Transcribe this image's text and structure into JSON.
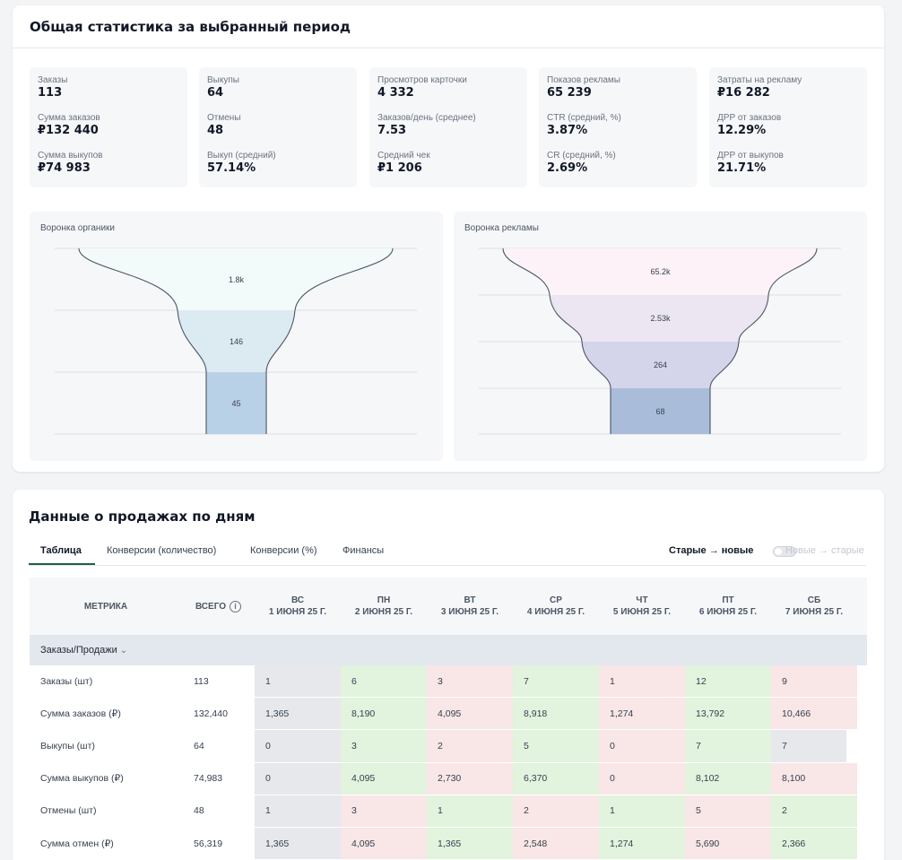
{
  "overview": {
    "title": "Общая статистика за выбранный период",
    "stat_boxes": [
      {
        "items": [
          {
            "label": "Заказы",
            "value": "113"
          },
          {
            "label": "Сумма заказов",
            "value": "₽132 440"
          },
          {
            "label": "Сумма выкупов",
            "value": "₽74 983"
          }
        ]
      },
      {
        "items": [
          {
            "label": "Выкупы",
            "value": "64"
          },
          {
            "label": "Отмены",
            "value": "48"
          },
          {
            "label": "Выкуп (средний)",
            "value": "57.14%"
          }
        ]
      },
      {
        "items": [
          {
            "label": "Просмотров карточки",
            "value": "4 332"
          },
          {
            "label": "Заказов/день (среднее)",
            "value": "7.53"
          },
          {
            "label": "Средний чек",
            "value": "₽1 206"
          }
        ]
      },
      {
        "items": [
          {
            "label": "Показов рекламы",
            "value": "65 239"
          },
          {
            "label": "CTR (средний, %)",
            "value": "3.87%"
          },
          {
            "label": "CR (средний, %)",
            "value": "2.69%"
          }
        ]
      },
      {
        "items": [
          {
            "label": "Затраты на рекламу",
            "value": "₽16 282"
          },
          {
            "label": "ДРР от заказов",
            "value": "12.29%"
          },
          {
            "label": "ДРР от выкупов",
            "value": "21.71%"
          }
        ]
      }
    ],
    "funnels": [
      {
        "title": "Воронка органики",
        "stages": [
          "1.8k",
          "146",
          "45"
        ],
        "colors": [
          "#f3fafa",
          "#dceaf1",
          "#b9d1e6"
        ]
      },
      {
        "title": "Воронка рекламы",
        "stages": [
          "65.2k",
          "2.53k",
          "264",
          "68"
        ],
        "colors": [
          "#fcf2f8",
          "#ece6f2",
          "#d4d4ea",
          "#a9bddb"
        ]
      }
    ]
  },
  "sales": {
    "title": "Данные о продажах по дням",
    "tabs": [
      "Таблица",
      "Конверсии (количество)",
      "Конверсии (%)",
      "Финансы"
    ],
    "sort_old_new": "Старые → новые",
    "sort_new_old": "Новые → старые",
    "header": {
      "metric": "МЕТРИКА",
      "total": "ВСЕГО",
      "info_icon": "i",
      "days": [
        {
          "dow": "ВС",
          "date": "1 ИЮНЯ 25 Г."
        },
        {
          "dow": "ПН",
          "date": "2 ИЮНЯ 25 Г."
        },
        {
          "dow": "ВТ",
          "date": "3 ИЮНЯ 25 Г."
        },
        {
          "dow": "СР",
          "date": "4 ИЮНЯ 25 Г."
        },
        {
          "dow": "ЧТ",
          "date": "5 ИЮНЯ 25 Г."
        },
        {
          "dow": "ПТ",
          "date": "6 ИЮНЯ 25 Г."
        },
        {
          "dow": "СБ",
          "date": "7 ИЮНЯ 25 Г."
        }
      ]
    },
    "group": "Заказы/Продажи",
    "rows": [
      {
        "metric": "Заказы (шт)",
        "total": "113",
        "cells": [
          {
            "v": "1",
            "c": "gray"
          },
          {
            "v": "6",
            "c": "green"
          },
          {
            "v": "3",
            "c": "red"
          },
          {
            "v": "7",
            "c": "green"
          },
          {
            "v": "1",
            "c": "red"
          },
          {
            "v": "12",
            "c": "green"
          },
          {
            "v": "9",
            "c": "red"
          }
        ]
      },
      {
        "metric": "Сумма заказов (₽)",
        "total": "132,440",
        "cells": [
          {
            "v": "1,365",
            "c": "gray"
          },
          {
            "v": "8,190",
            "c": "green"
          },
          {
            "v": "4,095",
            "c": "red"
          },
          {
            "v": "8,918",
            "c": "green"
          },
          {
            "v": "1,274",
            "c": "red"
          },
          {
            "v": "13,792",
            "c": "green"
          },
          {
            "v": "10,466",
            "c": "red"
          }
        ]
      },
      {
        "metric": "Выкупы (шт)",
        "total": "64",
        "cells": [
          {
            "v": "0",
            "c": "gray"
          },
          {
            "v": "3",
            "c": "green"
          },
          {
            "v": "2",
            "c": "red"
          },
          {
            "v": "5",
            "c": "green"
          },
          {
            "v": "0",
            "c": "red"
          },
          {
            "v": "7",
            "c": "green"
          },
          {
            "v": "7",
            "c": "gray"
          }
        ]
      },
      {
        "metric": "Сумма выкупов (₽)",
        "total": "74,983",
        "cells": [
          {
            "v": "0",
            "c": "gray"
          },
          {
            "v": "4,095",
            "c": "green"
          },
          {
            "v": "2,730",
            "c": "red"
          },
          {
            "v": "6,370",
            "c": "green"
          },
          {
            "v": "0",
            "c": "red"
          },
          {
            "v": "8,102",
            "c": "green"
          },
          {
            "v": "8,100",
            "c": "red"
          }
        ]
      },
      {
        "metric": "Отмены (шт)",
        "total": "48",
        "cells": [
          {
            "v": "1",
            "c": "gray"
          },
          {
            "v": "3",
            "c": "red"
          },
          {
            "v": "1",
            "c": "green"
          },
          {
            "v": "2",
            "c": "red"
          },
          {
            "v": "1",
            "c": "green"
          },
          {
            "v": "5",
            "c": "red"
          },
          {
            "v": "2",
            "c": "green"
          }
        ]
      },
      {
        "metric": "Сумма отмен (₽)",
        "total": "56,319",
        "cells": [
          {
            "v": "1,365",
            "c": "gray"
          },
          {
            "v": "4,095",
            "c": "red"
          },
          {
            "v": "1,365",
            "c": "green"
          },
          {
            "v": "2,548",
            "c": "red"
          },
          {
            "v": "1,274",
            "c": "green"
          },
          {
            "v": "5,690",
            "c": "red"
          },
          {
            "v": "2,366",
            "c": "green"
          }
        ]
      }
    ]
  }
}
